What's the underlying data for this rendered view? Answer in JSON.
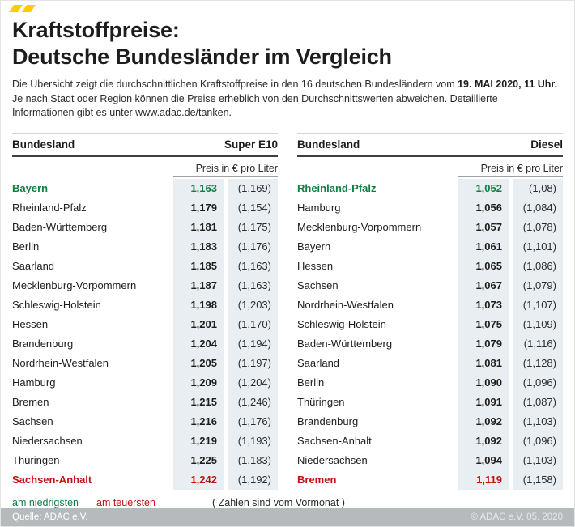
{
  "header": {
    "title_line1": "Kraftstoffpreise:",
    "title_line2": "Deutsche Bundesländer im Vergleich",
    "intro_before": "Die Übersicht zeigt die durchschnittlichen Kraftstoffpreise in den 16 deutschen Bundesländern vom ",
    "intro_bold": "19. MAI 2020, 11 Uhr.",
    "intro_after": " Je nach Stadt oder Region können die Preise erheblich von den Durchschnittswerten abweichen. Detaillierte Informationen gibt es unter www.adac.de/tanken."
  },
  "labels": {
    "region": "Bundesland",
    "price_unit": "Preis in € pro Liter"
  },
  "tables": [
    {
      "fuel": "Super E10",
      "rows": [
        {
          "name": "Bayern",
          "price": "1,163",
          "prev": "(1,169)",
          "highlight": "lowest"
        },
        {
          "name": "Rheinland-Pfalz",
          "price": "1,179",
          "prev": "(1,154)",
          "highlight": ""
        },
        {
          "name": "Baden-Württemberg",
          "price": "1,181",
          "prev": "(1,175)",
          "highlight": ""
        },
        {
          "name": "Berlin",
          "price": "1,183",
          "prev": "(1,176)",
          "highlight": ""
        },
        {
          "name": "Saarland",
          "price": "1,185",
          "prev": "(1,163)",
          "highlight": ""
        },
        {
          "name": "Mecklenburg-Vorpommern",
          "price": "1,187",
          "prev": "(1,163)",
          "highlight": ""
        },
        {
          "name": "Schleswig-Holstein",
          "price": "1,198",
          "prev": "(1,203)",
          "highlight": ""
        },
        {
          "name": "Hessen",
          "price": "1,201",
          "prev": "(1,170)",
          "highlight": ""
        },
        {
          "name": "Brandenburg",
          "price": "1,204",
          "prev": "(1,194)",
          "highlight": ""
        },
        {
          "name": "Nordrhein-Westfalen",
          "price": "1,205",
          "prev": "(1,197)",
          "highlight": ""
        },
        {
          "name": "Hamburg",
          "price": "1,209",
          "prev": "(1,204)",
          "highlight": ""
        },
        {
          "name": "Bremen",
          "price": "1,215",
          "prev": "(1,246)",
          "highlight": ""
        },
        {
          "name": "Sachsen",
          "price": "1,216",
          "prev": "(1,176)",
          "highlight": ""
        },
        {
          "name": "Niedersachsen",
          "price": "1,219",
          "prev": "(1,193)",
          "highlight": ""
        },
        {
          "name": "Thüringen",
          "price": "1,225",
          "prev": "(1,183)",
          "highlight": ""
        },
        {
          "name": "Sachsen-Anhalt",
          "price": "1,242",
          "prev": "(1,192)",
          "highlight": "highest"
        }
      ]
    },
    {
      "fuel": "Diesel",
      "rows": [
        {
          "name": "Rheinland-Pfalz",
          "price": "1,052",
          "prev": "(1,08)",
          "highlight": "lowest"
        },
        {
          "name": "Hamburg",
          "price": "1,056",
          "prev": "(1,084)",
          "highlight": ""
        },
        {
          "name": "Mecklenburg-Vorpommern",
          "price": "1,057",
          "prev": "(1,078)",
          "highlight": ""
        },
        {
          "name": "Bayern",
          "price": "1,061",
          "prev": "(1,101)",
          "highlight": ""
        },
        {
          "name": "Hessen",
          "price": "1,065",
          "prev": "(1,086)",
          "highlight": ""
        },
        {
          "name": "Sachsen",
          "price": "1,067",
          "prev": "(1,079)",
          "highlight": ""
        },
        {
          "name": "Nordrhein-Westfalen",
          "price": "1,073",
          "prev": "(1,107)",
          "highlight": ""
        },
        {
          "name": "Schleswig-Holstein",
          "price": "1,075",
          "prev": "(1,109)",
          "highlight": ""
        },
        {
          "name": "Baden-Württemberg",
          "price": "1,079",
          "prev": "(1,116)",
          "highlight": ""
        },
        {
          "name": "Saarland",
          "price": "1,081",
          "prev": "(1,128)",
          "highlight": ""
        },
        {
          "name": "Berlin",
          "price": "1,090",
          "prev": "(1,096)",
          "highlight": ""
        },
        {
          "name": "Thüringen",
          "price": "1,091",
          "prev": "(1,087)",
          "highlight": ""
        },
        {
          "name": "Brandenburg",
          "price": "1,092",
          "prev": "(1,103)",
          "highlight": ""
        },
        {
          "name": "Sachsen-Anhalt",
          "price": "1,092",
          "prev": "(1,096)",
          "highlight": ""
        },
        {
          "name": "Niedersachsen",
          "price": "1,094",
          "prev": "(1,103)",
          "highlight": ""
        },
        {
          "name": "Bremen",
          "price": "1,119",
          "prev": "(1,158)",
          "highlight": "highest"
        }
      ]
    }
  ],
  "legend": {
    "lowest": "am niedrigsten",
    "highest": "am teuersten",
    "note": "( Zahlen sind vom Vormonat )"
  },
  "footer": {
    "source": "Quelle: ADAC e.V.",
    "copyright": "© ADAC e.V. 05. 2020"
  },
  "colors": {
    "accent_yellow": "#ffcc00",
    "lowest_green": "#0e7e42",
    "highest_red": "#c41212",
    "column_shade": "#e9eef2"
  },
  "chart_data": [
    {
      "type": "table",
      "title": "Super E10 — Preis in € pro Liter",
      "columns": [
        "Bundesland",
        "Preis",
        "Vormonat"
      ],
      "rows": [
        [
          "Bayern",
          1.163,
          1.169
        ],
        [
          "Rheinland-Pfalz",
          1.179,
          1.154
        ],
        [
          "Baden-Württemberg",
          1.181,
          1.175
        ],
        [
          "Berlin",
          1.183,
          1.176
        ],
        [
          "Saarland",
          1.185,
          1.163
        ],
        [
          "Mecklenburg-Vorpommern",
          1.187,
          1.163
        ],
        [
          "Schleswig-Holstein",
          1.198,
          1.203
        ],
        [
          "Hessen",
          1.201,
          1.17
        ],
        [
          "Brandenburg",
          1.204,
          1.194
        ],
        [
          "Nordrhein-Westfalen",
          1.205,
          1.197
        ],
        [
          "Hamburg",
          1.209,
          1.204
        ],
        [
          "Bremen",
          1.215,
          1.246
        ],
        [
          "Sachsen",
          1.216,
          1.176
        ],
        [
          "Niedersachsen",
          1.219,
          1.193
        ],
        [
          "Thüringen",
          1.225,
          1.183
        ],
        [
          "Sachsen-Anhalt",
          1.242,
          1.192
        ]
      ]
    },
    {
      "type": "table",
      "title": "Diesel — Preis in € pro Liter",
      "columns": [
        "Bundesland",
        "Preis",
        "Vormonat"
      ],
      "rows": [
        [
          "Rheinland-Pfalz",
          1.052,
          1.08
        ],
        [
          "Hamburg",
          1.056,
          1.084
        ],
        [
          "Mecklenburg-Vorpommern",
          1.057,
          1.078
        ],
        [
          "Bayern",
          1.061,
          1.101
        ],
        [
          "Hessen",
          1.065,
          1.086
        ],
        [
          "Sachsen",
          1.067,
          1.079
        ],
        [
          "Nordrhein-Westfalen",
          1.073,
          1.107
        ],
        [
          "Schleswig-Holstein",
          1.075,
          1.109
        ],
        [
          "Baden-Württemberg",
          1.079,
          1.116
        ],
        [
          "Saarland",
          1.081,
          1.128
        ],
        [
          "Berlin",
          1.09,
          1.096
        ],
        [
          "Thüringen",
          1.091,
          1.087
        ],
        [
          "Brandenburg",
          1.092,
          1.103
        ],
        [
          "Sachsen-Anhalt",
          1.092,
          1.096
        ],
        [
          "Niedersachsen",
          1.094,
          1.103
        ],
        [
          "Bremen",
          1.119,
          1.158
        ]
      ]
    }
  ]
}
